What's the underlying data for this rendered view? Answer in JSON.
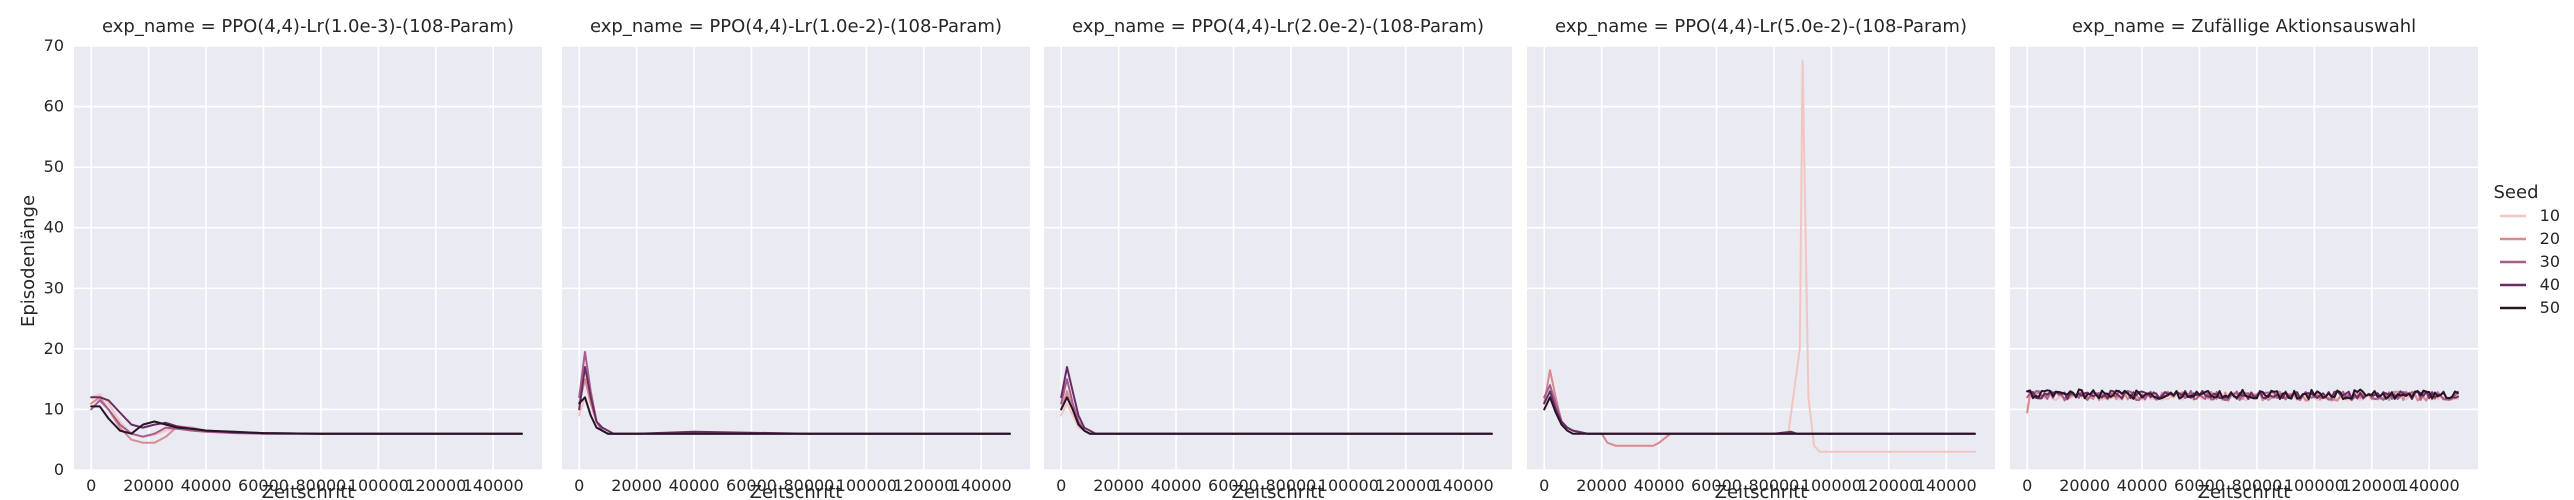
{
  "chart_data": {
    "type": "line",
    "ylabel": "Episodenlänge",
    "xlabel": "Zeitschritt",
    "ylim": [
      0,
      70
    ],
    "xlim": [
      -6000,
      157000
    ],
    "yticks": [
      0,
      10,
      20,
      30,
      40,
      50,
      60,
      70
    ],
    "xticks": [
      0,
      20000,
      40000,
      60000,
      80000,
      100000,
      120000,
      140000
    ],
    "xtick_labels": [
      "0",
      "20000",
      "40000",
      "60000",
      "80000",
      "100000",
      "120000",
      "140000"
    ],
    "grid": true,
    "legend": {
      "title": "Seed",
      "placement": "right",
      "entries": [
        {
          "label": "10",
          "color": "#f2c6c0"
        },
        {
          "label": "20",
          "color": "#d88a8e"
        },
        {
          "label": "30",
          "color": "#a85c8e"
        },
        {
          "label": "40",
          "color": "#6a2d63"
        },
        {
          "label": "50",
          "color": "#261526"
        }
      ]
    },
    "panels": [
      {
        "title": "exp_name = PPO(4,4)-Lr(1.0e-3)-(108-Param)",
        "series": [
          {
            "name": "10",
            "x": [
              0,
              3000,
              6000,
              10000,
              14000,
              18000,
              22000,
              26000,
              30000,
              35000,
              40000,
              50000,
              60000,
              80000,
              100000,
              120000,
              150000
            ],
            "y": [
              12,
              12.5,
              11,
              8,
              6,
              5.5,
              5.8,
              6.5,
              7,
              6.8,
              6.5,
              6.2,
              6.1,
              6,
              6,
              6,
              6
            ]
          },
          {
            "name": "20",
            "x": [
              0,
              3000,
              6000,
              10000,
              14000,
              18000,
              22000,
              26000,
              30000,
              35000,
              40000,
              50000,
              60000,
              80000,
              100000,
              120000,
              150000
            ],
            "y": [
              11,
              12,
              10,
              7,
              5,
              4.5,
              4.5,
              5.5,
              7.2,
              7,
              6.5,
              6.2,
              6,
              6,
              6,
              6,
              6
            ]
          },
          {
            "name": "30",
            "x": [
              0,
              3000,
              6000,
              10000,
              14000,
              18000,
              22000,
              26000,
              30000,
              35000,
              40000,
              50000,
              60000,
              80000,
              100000,
              120000,
              150000
            ],
            "y": [
              10,
              11.5,
              10,
              7.5,
              6,
              5.5,
              6,
              7,
              6.8,
              6.5,
              6.3,
              6.1,
              6,
              6,
              6,
              6,
              6
            ]
          },
          {
            "name": "40",
            "x": [
              0,
              3000,
              6000,
              10000,
              14000,
              18000,
              22000,
              26000,
              30000,
              35000,
              40000,
              50000,
              60000,
              80000,
              100000,
              120000,
              150000
            ],
            "y": [
              12,
              12,
              11.5,
              9.5,
              7.5,
              7,
              7.5,
              7.8,
              7.2,
              6.8,
              6.5,
              6.2,
              6.1,
              6,
              6,
              6,
              6
            ]
          },
          {
            "name": "50",
            "x": [
              0,
              3000,
              6000,
              10000,
              14000,
              18000,
              22000,
              26000,
              30000,
              35000,
              40000,
              50000,
              60000,
              80000,
              100000,
              120000,
              150000
            ],
            "y": [
              10.5,
              10.5,
              8.5,
              6.5,
              6,
              7.5,
              8,
              7.5,
              7,
              6.8,
              6.5,
              6.3,
              6.1,
              6,
              6,
              6,
              6
            ]
          }
        ]
      },
      {
        "title": "exp_name = PPO(4,4)-Lr(1.0e-2)-(108-Param)",
        "series": [
          {
            "name": "10",
            "x": [
              0,
              2000,
              4000,
              6000,
              8000,
              10000,
              12000,
              15000,
              20000,
              40000,
              80000,
              120000,
              150000
            ],
            "y": [
              9,
              12,
              9,
              7,
              6.5,
              6,
              6,
              6,
              6,
              6,
              6,
              6,
              6
            ]
          },
          {
            "name": "20",
            "x": [
              0,
              2000,
              4000,
              6000,
              8000,
              10000,
              12000,
              15000,
              20000,
              40000,
              80000,
              120000,
              150000
            ],
            "y": [
              11,
              15,
              11,
              8,
              6.5,
              6,
              6,
              6,
              6,
              6,
              6,
              6,
              6
            ]
          },
          {
            "name": "30",
            "x": [
              0,
              2000,
              4000,
              6000,
              8000,
              10000,
              12000,
              15000,
              20000,
              40000,
              80000,
              120000,
              150000
            ],
            "y": [
              12,
              19.5,
              13,
              8,
              6.5,
              6,
              6,
              6,
              6,
              6,
              6,
              6,
              6
            ]
          },
          {
            "name": "40",
            "x": [
              0,
              2000,
              4000,
              6000,
              8000,
              10000,
              12000,
              15000,
              20000,
              40000,
              80000,
              120000,
              150000
            ],
            "y": [
              10,
              17,
              12,
              8,
              7,
              6.5,
              6,
              6,
              6,
              6.3,
              6,
              6,
              6
            ]
          },
          {
            "name": "50",
            "x": [
              0,
              2000,
              4000,
              6000,
              8000,
              10000,
              12000,
              15000,
              20000,
              40000,
              80000,
              120000,
              150000
            ],
            "y": [
              11,
              12,
              9,
              7,
              6.5,
              6,
              6,
              6,
              6,
              6,
              6,
              6,
              6
            ]
          }
        ]
      },
      {
        "title": "exp_name = PPO(4,4)-Lr(2.0e-2)-(108-Param)",
        "series": [
          {
            "name": "10",
            "x": [
              0,
              2000,
              4000,
              6000,
              8000,
              10000,
              12000,
              15000,
              20000,
              40000,
              80000,
              120000,
              150000
            ],
            "y": [
              9,
              11,
              9,
              7,
              6.5,
              6,
              6,
              6,
              6,
              6,
              6,
              6,
              6
            ]
          },
          {
            "name": "20",
            "x": [
              0,
              2000,
              4000,
              6000,
              8000,
              10000,
              12000,
              15000,
              20000,
              40000,
              80000,
              120000,
              150000
            ],
            "y": [
              10,
              13,
              10,
              7.5,
              6.5,
              6,
              6,
              6,
              6,
              6,
              6,
              6,
              6
            ]
          },
          {
            "name": "30",
            "x": [
              0,
              2000,
              4000,
              6000,
              8000,
              10000,
              12000,
              15000,
              20000,
              40000,
              80000,
              120000,
              150000
            ],
            "y": [
              11,
              15,
              11,
              8,
              6.5,
              6,
              6,
              6,
              6,
              6,
              6,
              6,
              6
            ]
          },
          {
            "name": "40",
            "x": [
              0,
              2000,
              4000,
              6000,
              8000,
              10000,
              12000,
              15000,
              20000,
              40000,
              80000,
              120000,
              150000
            ],
            "y": [
              12,
              17,
              13,
              9,
              7,
              6.5,
              6,
              6,
              6,
              6,
              6,
              6,
              6
            ]
          },
          {
            "name": "50",
            "x": [
              0,
              2000,
              4000,
              6000,
              8000,
              10000,
              12000,
              15000,
              20000,
              40000,
              80000,
              120000,
              150000
            ],
            "y": [
              10,
              12,
              10,
              7.5,
              6.5,
              6,
              6,
              6,
              6,
              6,
              6,
              6,
              6
            ]
          }
        ]
      },
      {
        "title": "exp_name = PPO(4,4)-Lr(5.0e-2)-(108-Param)",
        "series": [
          {
            "name": "10",
            "x": [
              0,
              2000,
              4000,
              6000,
              8000,
              10000,
              15000,
              20000,
              40000,
              85000,
              89000,
              90000,
              91000,
              92000,
              94000,
              96000,
              100000,
              120000,
              150000
            ],
            "y": [
              10,
              12,
              10,
              8,
              7,
              6.5,
              6,
              6,
              6,
              6,
              20,
              67.5,
              40,
              12,
              4,
              3,
              3,
              3,
              3
            ]
          },
          {
            "name": "20",
            "x": [
              0,
              2000,
              4000,
              6000,
              8000,
              10000,
              15000,
              20000,
              22000,
              25000,
              30000,
              38000,
              40000,
              44000,
              50000,
              80000,
              150000
            ],
            "y": [
              11,
              16.5,
              12,
              8,
              7,
              6.5,
              6,
              6,
              4.5,
              4,
              4,
              4,
              4.5,
              6,
              6,
              6,
              6
            ]
          },
          {
            "name": "30",
            "x": [
              0,
              2000,
              4000,
              6000,
              8000,
              10000,
              15000,
              20000,
              40000,
              80000,
              120000,
              150000
            ],
            "y": [
              12,
              14,
              11,
              8,
              7,
              6.5,
              6,
              6,
              6,
              6,
              6,
              6
            ]
          },
          {
            "name": "40",
            "x": [
              0,
              2000,
              4000,
              6000,
              8000,
              10000,
              15000,
              20000,
              40000,
              80000,
              86000,
              88000,
              120000,
              150000
            ],
            "y": [
              11,
              13,
              10,
              8,
              7,
              6.5,
              6,
              6,
              6,
              6,
              6.3,
              6,
              6,
              6
            ]
          },
          {
            "name": "50",
            "x": [
              0,
              2000,
              4000,
              6000,
              8000,
              10000,
              15000,
              20000,
              40000,
              80000,
              120000,
              150000
            ],
            "y": [
              10,
              12,
              9.5,
              7.5,
              6.5,
              6,
              6,
              6,
              6,
              6,
              6,
              6
            ]
          }
        ]
      },
      {
        "title": "exp_name = Zufällige Aktionsauswahl",
        "noisy": true,
        "series": [
          {
            "name": "10",
            "base": 12,
            "amp": 0.5,
            "start": 10.5
          },
          {
            "name": "20",
            "base": 12.2,
            "amp": 0.8,
            "start": 9.5
          },
          {
            "name": "30",
            "base": 12.3,
            "amp": 0.8,
            "start": 12
          },
          {
            "name": "40",
            "base": 12.4,
            "amp": 0.7,
            "start": 13
          },
          {
            "name": "50",
            "base": 12.5,
            "amp": 0.8,
            "start": 13
          }
        ],
        "x_end": 150000
      }
    ]
  }
}
